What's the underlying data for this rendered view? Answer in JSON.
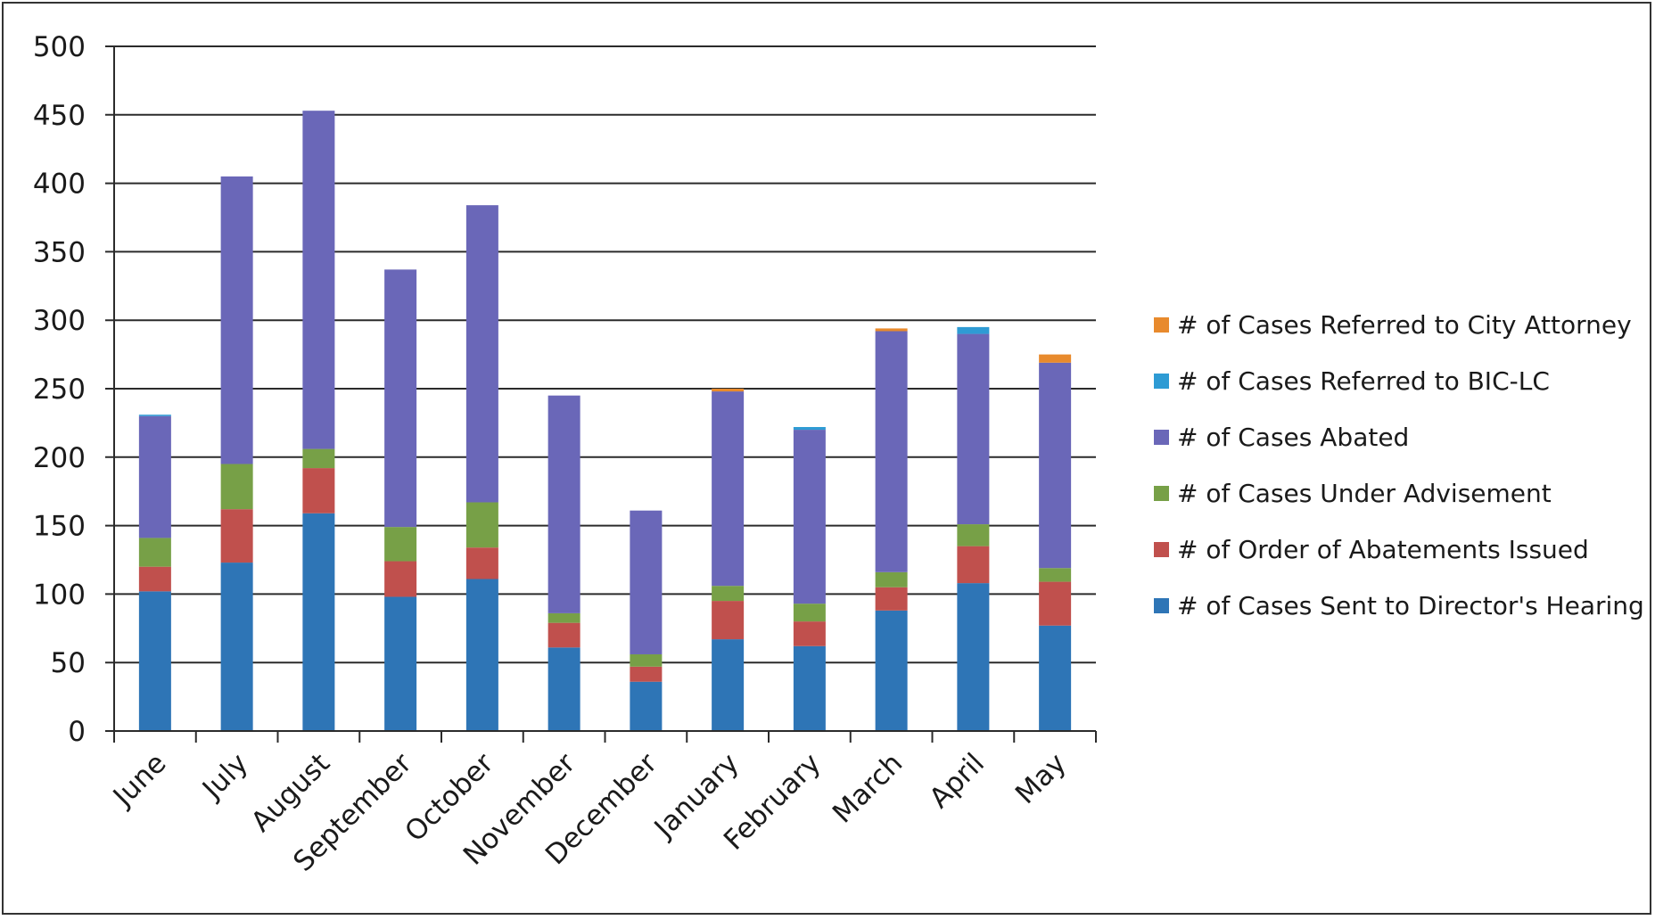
{
  "chart_data": {
    "type": "bar",
    "stacked": true,
    "categories": [
      "June",
      "July",
      "August",
      "September",
      "October",
      "November",
      "December",
      "January",
      "February",
      "March",
      "April",
      "May"
    ],
    "series": [
      {
        "name": "# of Cases Sent to Director's Hearing",
        "color": "#2e75b6",
        "values": [
          102,
          123,
          159,
          98,
          111,
          61,
          36,
          67,
          62,
          88,
          108,
          77
        ]
      },
      {
        "name": "# of Order of Abatements Issued",
        "color": "#c0504d",
        "values": [
          18,
          39,
          33,
          26,
          23,
          18,
          11,
          28,
          18,
          17,
          27,
          32
        ]
      },
      {
        "name": "# of Cases Under Advisement",
        "color": "#77a047",
        "values": [
          21,
          33,
          14,
          25,
          33,
          7,
          9,
          11,
          13,
          11,
          16,
          10
        ]
      },
      {
        "name": "# of Cases Abated",
        "color": "#6a67b8",
        "values": [
          89,
          210,
          247,
          188,
          217,
          159,
          105,
          142,
          127,
          176,
          139,
          150
        ]
      },
      {
        "name": "# of Cases Referred to BIC-LC",
        "color": "#2e9bd4",
        "values": [
          1,
          0,
          0,
          0,
          0,
          0,
          0,
          0,
          2,
          0,
          5,
          0
        ]
      },
      {
        "name": "# of Cases Referred to City Attorney",
        "color": "#e88a2d",
        "values": [
          0,
          0,
          0,
          0,
          0,
          0,
          0,
          2,
          0,
          2,
          0,
          6
        ]
      }
    ],
    "ylim": [
      0,
      500
    ],
    "yticks": [
      0,
      50,
      100,
      150,
      200,
      250,
      300,
      350,
      400,
      450,
      500
    ],
    "grid": true,
    "legend": "right",
    "title": "",
    "xlabel": "",
    "ylabel": ""
  }
}
